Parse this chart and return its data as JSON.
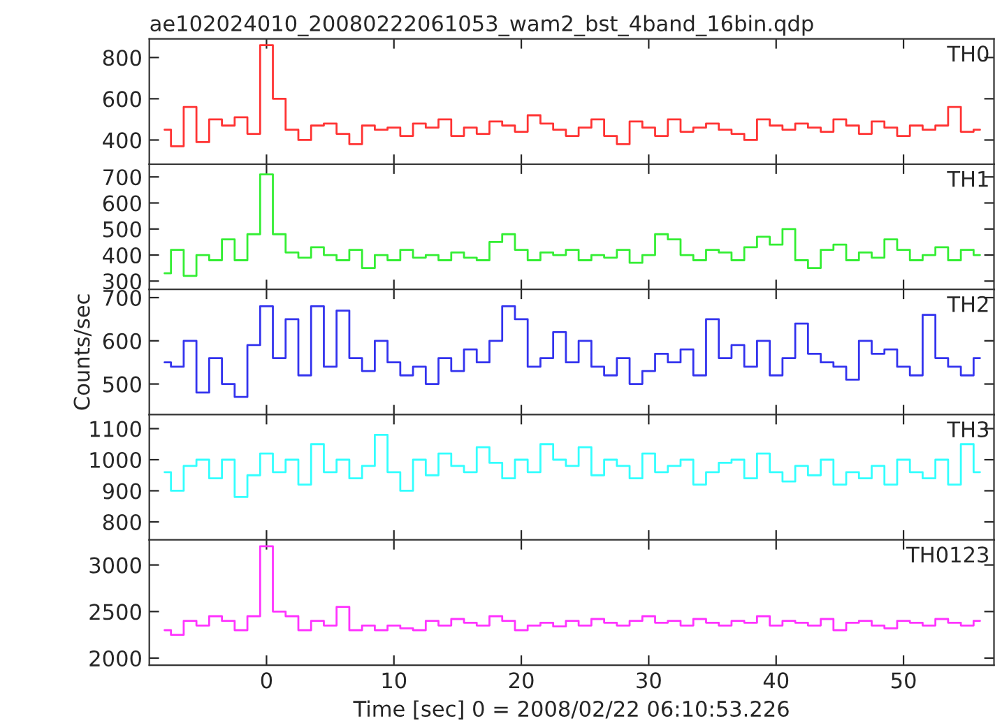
{
  "chart_data": [
    {
      "type": "step",
      "title": "ae102024010_20080222061053_wam2_bst_4band_16bin.qdp",
      "annotations": [
        "TH0"
      ],
      "color": "#ff3333",
      "tick_labels": "y",
      "xlim": [
        -9.2,
        57.1
      ],
      "xticks": [
        0,
        10,
        20,
        30,
        40,
        50
      ],
      "ylim": [
        283,
        890
      ],
      "yticks": [
        400,
        600,
        800
      ],
      "x": [
        -8,
        -7,
        -6,
        -5,
        -4,
        -3,
        -2,
        -1,
        0,
        1,
        2,
        3,
        4,
        5,
        6,
        7,
        8,
        9,
        10,
        11,
        12,
        13,
        14,
        15,
        16,
        17,
        18,
        19,
        20,
        21,
        22,
        23,
        24,
        25,
        26,
        27,
        28,
        29,
        30,
        31,
        32,
        33,
        34,
        35,
        36,
        37,
        38,
        39,
        40,
        41,
        42,
        43,
        44,
        45,
        46,
        47,
        48,
        49,
        50,
        51,
        52,
        53,
        54,
        55,
        56
      ],
      "values": [
        450,
        370,
        560,
        390,
        500,
        470,
        510,
        430,
        860,
        600,
        450,
        400,
        470,
        480,
        430,
        380,
        470,
        450,
        460,
        420,
        480,
        460,
        500,
        420,
        460,
        430,
        490,
        470,
        440,
        520,
        480,
        450,
        420,
        460,
        500,
        420,
        380,
        490,
        460,
        420,
        500,
        440,
        460,
        480,
        450,
        430,
        400,
        500,
        470,
        450,
        480,
        460,
        440,
        500,
        470,
        430,
        490,
        460,
        420,
        470,
        450,
        470,
        560,
        440,
        450
      ]
    },
    {
      "type": "step",
      "annotations": [
        "TH1"
      ],
      "color": "#33ee33",
      "tick_labels": "y",
      "xlim": [
        -9.2,
        57.1
      ],
      "xticks": [
        0,
        10,
        20,
        30,
        40,
        50
      ],
      "ylim": [
        268,
        749
      ],
      "yticks": [
        300,
        400,
        500,
        600,
        700
      ],
      "x": [
        -8,
        -7,
        -6,
        -5,
        -4,
        -3,
        -2,
        -1,
        0,
        1,
        2,
        3,
        4,
        5,
        6,
        7,
        8,
        9,
        10,
        11,
        12,
        13,
        14,
        15,
        16,
        17,
        18,
        19,
        20,
        21,
        22,
        23,
        24,
        25,
        26,
        27,
        28,
        29,
        30,
        31,
        32,
        33,
        34,
        35,
        36,
        37,
        38,
        39,
        40,
        41,
        42,
        43,
        44,
        45,
        46,
        47,
        48,
        49,
        50,
        51,
        52,
        53,
        54,
        55,
        56
      ],
      "values": [
        330,
        420,
        320,
        400,
        380,
        460,
        380,
        480,
        710,
        480,
        410,
        390,
        430,
        400,
        380,
        420,
        350,
        400,
        380,
        420,
        390,
        400,
        380,
        410,
        390,
        380,
        450,
        480,
        420,
        380,
        410,
        400,
        420,
        380,
        400,
        390,
        420,
        370,
        400,
        480,
        460,
        400,
        380,
        420,
        410,
        380,
        430,
        470,
        440,
        500,
        380,
        350,
        420,
        440,
        380,
        410,
        390,
        460,
        420,
        380,
        400,
        430,
        380,
        420,
        400
      ]
    },
    {
      "type": "step",
      "ylabel": "Counts/sec",
      "annotations": [
        "TH2"
      ],
      "color": "#3333ee",
      "tick_labels": "y",
      "xlim": [
        -9.2,
        57.1
      ],
      "xticks": [
        0,
        10,
        20,
        30,
        40,
        50
      ],
      "ylim": [
        429,
        719
      ],
      "yticks": [
        500,
        600,
        700
      ],
      "x": [
        -8,
        -7,
        -6,
        -5,
        -4,
        -3,
        -2,
        -1,
        0,
        1,
        2,
        3,
        4,
        5,
        6,
        7,
        8,
        9,
        10,
        11,
        12,
        13,
        14,
        15,
        16,
        17,
        18,
        19,
        20,
        21,
        22,
        23,
        24,
        25,
        26,
        27,
        28,
        29,
        30,
        31,
        32,
        33,
        34,
        35,
        36,
        37,
        38,
        39,
        40,
        41,
        42,
        43,
        44,
        45,
        46,
        47,
        48,
        49,
        50,
        51,
        52,
        53,
        54,
        55,
        56
      ],
      "values": [
        550,
        540,
        600,
        480,
        560,
        500,
        470,
        590,
        680,
        560,
        650,
        520,
        680,
        540,
        670,
        560,
        530,
        600,
        550,
        520,
        540,
        500,
        560,
        530,
        580,
        550,
        600,
        680,
        650,
        540,
        560,
        620,
        550,
        600,
        540,
        520,
        560,
        500,
        530,
        570,
        550,
        580,
        520,
        650,
        560,
        590,
        540,
        600,
        520,
        560,
        640,
        570,
        550,
        540,
        510,
        600,
        570,
        580,
        540,
        520,
        660,
        560,
        540,
        520,
        560
      ]
    },
    {
      "type": "step",
      "annotations": [
        "TH3"
      ],
      "color": "#33ffff",
      "tick_labels": "y",
      "xlim": [
        -9.2,
        57.1
      ],
      "xticks": [
        0,
        10,
        20,
        30,
        40,
        50
      ],
      "ylim": [
        742,
        1145
      ],
      "yticks": [
        800,
        900,
        1000,
        1100
      ],
      "x": [
        -8,
        -7,
        -6,
        -5,
        -4,
        -3,
        -2,
        -1,
        0,
        1,
        2,
        3,
        4,
        5,
        6,
        7,
        8,
        9,
        10,
        11,
        12,
        13,
        14,
        15,
        16,
        17,
        18,
        19,
        20,
        21,
        22,
        23,
        24,
        25,
        26,
        27,
        28,
        29,
        30,
        31,
        32,
        33,
        34,
        35,
        36,
        37,
        38,
        39,
        40,
        41,
        42,
        43,
        44,
        45,
        46,
        47,
        48,
        49,
        50,
        51,
        52,
        53,
        54,
        55,
        56
      ],
      "values": [
        960,
        900,
        980,
        1000,
        940,
        1000,
        880,
        950,
        1020,
        960,
        1000,
        920,
        1050,
        960,
        1000,
        940,
        980,
        1080,
        960,
        900,
        1000,
        950,
        1020,
        980,
        960,
        1040,
        990,
        940,
        1000,
        960,
        1050,
        1000,
        980,
        1040,
        950,
        1000,
        980,
        940,
        1020,
        960,
        980,
        1000,
        920,
        960,
        990,
        1000,
        940,
        1020,
        960,
        930,
        980,
        950,
        1000,
        920,
        960,
        940,
        980,
        920,
        1000,
        960,
        940,
        1000,
        920,
        1050,
        960
      ]
    },
    {
      "type": "step",
      "xlabel": "Time [sec] 0 = 2008/02/22 06:10:53.226",
      "annotations": [
        "TH0123"
      ],
      "color": "#ff33ff",
      "xlim": [
        -9.2,
        57.1
      ],
      "xticks": [
        0,
        10,
        20,
        30,
        40,
        50
      ],
      "ylim": [
        1925,
        3269
      ],
      "yticks": [
        2000,
        2500,
        3000
      ],
      "x": [
        -8,
        -7,
        -6,
        -5,
        -4,
        -3,
        -2,
        -1,
        0,
        1,
        2,
        3,
        4,
        5,
        6,
        7,
        8,
        9,
        10,
        11,
        12,
        13,
        14,
        15,
        16,
        17,
        18,
        19,
        20,
        21,
        22,
        23,
        24,
        25,
        26,
        27,
        28,
        29,
        30,
        31,
        32,
        33,
        34,
        35,
        36,
        37,
        38,
        39,
        40,
        41,
        42,
        43,
        44,
        45,
        46,
        47,
        48,
        49,
        50,
        51,
        52,
        53,
        54,
        55,
        56
      ],
      "values": [
        2300,
        2250,
        2400,
        2350,
        2450,
        2400,
        2300,
        2450,
        3200,
        2500,
        2450,
        2300,
        2400,
        2350,
        2550,
        2300,
        2350,
        2300,
        2350,
        2320,
        2300,
        2400,
        2350,
        2420,
        2380,
        2350,
        2450,
        2400,
        2300,
        2350,
        2380,
        2340,
        2400,
        2350,
        2420,
        2380,
        2350,
        2400,
        2450,
        2380,
        2400,
        2350,
        2420,
        2380,
        2350,
        2400,
        2380,
        2450,
        2350,
        2400,
        2380,
        2350,
        2420,
        2300,
        2380,
        2400,
        2350,
        2320,
        2400,
        2380,
        2350,
        2420,
        2380,
        2350,
        2400
      ]
    }
  ]
}
